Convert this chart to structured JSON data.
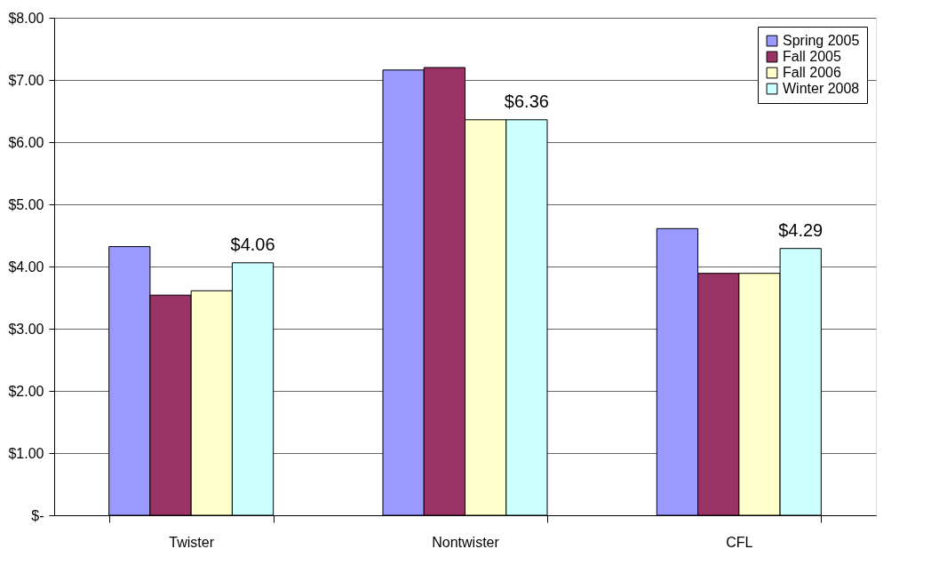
{
  "chart_data": {
    "type": "bar",
    "categories": [
      "Twister",
      "Nontwister",
      "CFL"
    ],
    "series": [
      {
        "name": "Spring 2005",
        "color": "#9999ff",
        "values": [
          4.32,
          7.16,
          4.61
        ]
      },
      {
        "name": "Fall 2005",
        "color": "#993366",
        "values": [
          3.54,
          7.2,
          3.89
        ]
      },
      {
        "name": "Fall 2006",
        "color": "#ffffcc",
        "values": [
          3.61,
          6.36,
          3.89
        ]
      },
      {
        "name": "Winter 2008",
        "color": "#ccffff",
        "values": [
          4.06,
          6.36,
          4.29
        ],
        "value_labels": [
          "$4.06",
          "$6.36",
          "$4.29"
        ]
      }
    ],
    "ylim": [
      0,
      8
    ],
    "yticks": [
      {
        "value": 0,
        "label": "$-"
      },
      {
        "value": 1,
        "label": "$1.00"
      },
      {
        "value": 2,
        "label": "$2.00"
      },
      {
        "value": 3,
        "label": "$3.00"
      },
      {
        "value": 4,
        "label": "$4.00"
      },
      {
        "value": 5,
        "label": "$5.00"
      },
      {
        "value": 6,
        "label": "$6.00"
      },
      {
        "value": 7,
        "label": "$7.00"
      },
      {
        "value": 8,
        "label": "$8.00"
      }
    ],
    "grid": "y",
    "legend": "top right"
  }
}
